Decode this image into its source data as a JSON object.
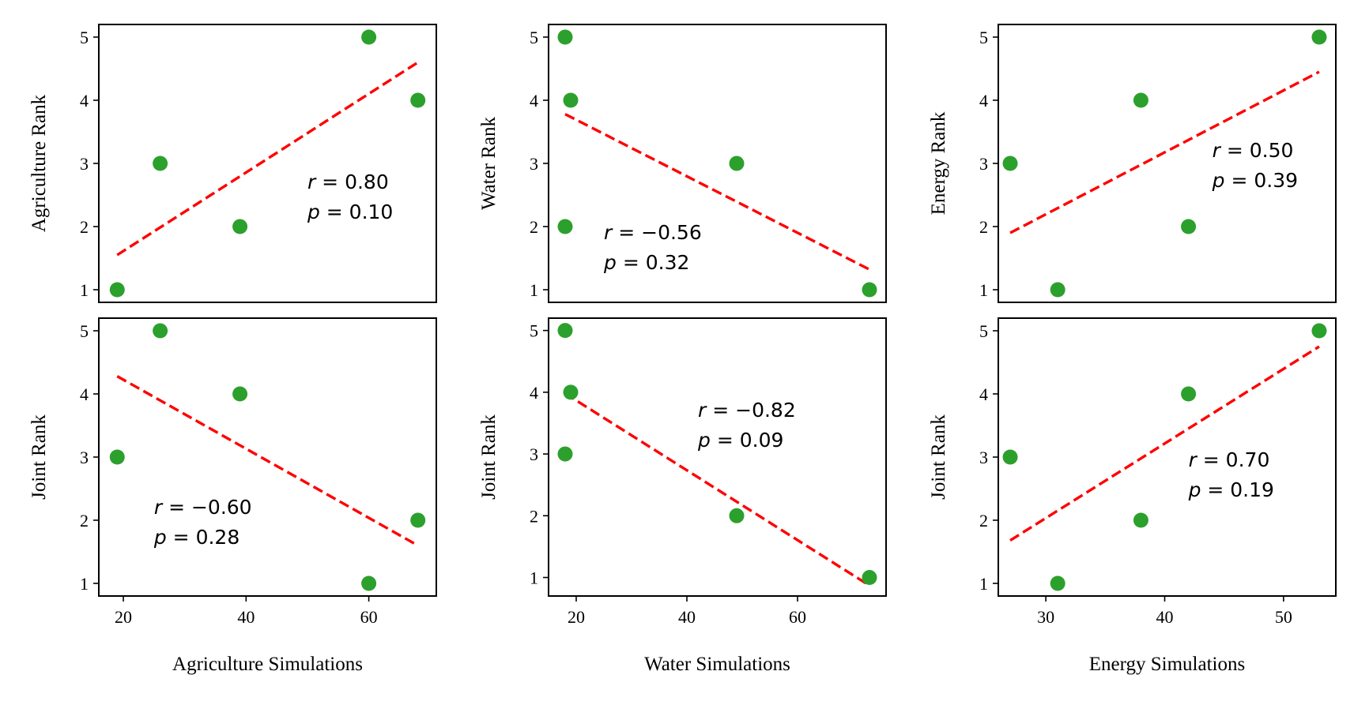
{
  "chart_data": [
    {
      "id": "agri-rank",
      "type": "scatter",
      "x": [
        19,
        26,
        39,
        60,
        68
      ],
      "y": [
        1,
        3,
        2,
        5,
        4
      ],
      "fit": {
        "x": [
          19,
          68
        ],
        "y": [
          1.55,
          4.6
        ]
      },
      "ylabel": "Agriculture Rank",
      "xlabel": "",
      "xlim": [
        16,
        71
      ],
      "ylim": [
        0.8,
        5.2
      ],
      "xticks": [],
      "xtick_labels": [],
      "yticks": [
        1,
        2,
        3,
        4,
        5
      ],
      "ytick_labels": [
        "1",
        "2",
        "3",
        "4",
        "5"
      ],
      "stats": {
        "r_label": "r",
        "r_text": "= 0.80",
        "p_label": "p",
        "p_text": "= 0.10",
        "anchor": [
          50,
          2.6
        ]
      },
      "colors": {
        "points": "#2ca02c",
        "fit": "#ff0000"
      }
    },
    {
      "id": "water-rank",
      "type": "scatter",
      "x": [
        18,
        19,
        49,
        18,
        73
      ],
      "y": [
        5,
        4,
        3,
        2,
        1
      ],
      "fit": {
        "x": [
          18,
          73
        ],
        "y": [
          3.78,
          1.32
        ]
      },
      "ylabel": "Water Rank",
      "xlabel": "",
      "xlim": [
        15,
        76
      ],
      "ylim": [
        0.8,
        5.2
      ],
      "xticks": [],
      "xtick_labels": [],
      "yticks": [
        1,
        2,
        3,
        4,
        5
      ],
      "ytick_labels": [
        "1",
        "2",
        "3",
        "4",
        "5"
      ],
      "stats": {
        "r_label": "r",
        "r_text": "= −0.56",
        "p_label": "p",
        "p_text": "= 0.32",
        "anchor": [
          25,
          1.8
        ]
      },
      "colors": {
        "points": "#2ca02c",
        "fit": "#ff0000"
      }
    },
    {
      "id": "energy-rank",
      "type": "scatter",
      "x": [
        27,
        31,
        38,
        42,
        53
      ],
      "y": [
        3,
        1,
        4,
        2,
        5
      ],
      "fit": {
        "x": [
          27,
          53
        ],
        "y": [
          1.9,
          4.45
        ]
      },
      "ylabel": "Energy Rank",
      "xlabel": "",
      "xlim": [
        26,
        54.4
      ],
      "ylim": [
        0.8,
        5.2
      ],
      "xticks": [],
      "xtick_labels": [],
      "yticks": [
        1,
        2,
        3,
        4,
        5
      ],
      "ytick_labels": [
        "1",
        "2",
        "3",
        "4",
        "5"
      ],
      "stats": {
        "r_label": "r",
        "r_text": "= 0.50",
        "p_label": "p",
        "p_text": "= 0.39",
        "anchor": [
          44,
          3.1
        ]
      },
      "colors": {
        "points": "#2ca02c",
        "fit": "#ff0000"
      }
    },
    {
      "id": "agri-joint",
      "type": "scatter",
      "x": [
        19,
        26,
        39,
        60,
        68
      ],
      "y": [
        3,
        5,
        4,
        1,
        2
      ],
      "fit": {
        "x": [
          19,
          68
        ],
        "y": [
          4.28,
          1.6
        ]
      },
      "ylabel": "Joint Rank",
      "xlabel": "Agriculture Simulations",
      "xlim": [
        16,
        71
      ],
      "ylim": [
        0.8,
        5.2
      ],
      "xticks": [
        20,
        40,
        60
      ],
      "xtick_labels": [
        "20",
        "40",
        "60"
      ],
      "yticks": [
        1,
        2,
        3,
        4,
        5
      ],
      "ytick_labels": [
        "1",
        "2",
        "3",
        "4",
        "5"
      ],
      "stats": {
        "r_label": "r",
        "r_text": "= −0.60",
        "p_label": "p",
        "p_text": "= 0.28",
        "anchor": [
          25,
          2.1
        ]
      },
      "colors": {
        "points": "#2ca02c",
        "fit": "#ff0000"
      }
    },
    {
      "id": "water-joint",
      "type": "scatter",
      "x": [
        18,
        19,
        18,
        49,
        73
      ],
      "y": [
        5,
        4,
        3,
        2,
        1
      ],
      "fit": {
        "x": [
          18,
          73
        ],
        "y": [
          3.98,
          0.87
        ]
      },
      "ylabel": "Joint Rank",
      "xlabel": "Water Simulations",
      "xlim": [
        15,
        76
      ],
      "ylim": [
        0.7,
        5.2
      ],
      "xticks": [
        20,
        40,
        60
      ],
      "xtick_labels": [
        "20",
        "40",
        "60"
      ],
      "yticks": [
        1,
        2,
        3,
        4,
        5
      ],
      "ytick_labels": [
        "1",
        "2",
        "3",
        "4",
        "5"
      ],
      "stats": {
        "r_label": "r",
        "r_text": "= −0.82",
        "p_label": "p",
        "p_text": "= 0.09",
        "anchor": [
          42,
          3.6
        ]
      },
      "colors": {
        "points": "#2ca02c",
        "fit": "#ff0000"
      }
    },
    {
      "id": "energy-joint",
      "type": "scatter",
      "x": [
        27,
        31,
        38,
        42,
        53
      ],
      "y": [
        3,
        1,
        2,
        4,
        5
      ],
      "fit": {
        "x": [
          27,
          53
        ],
        "y": [
          1.68,
          4.75
        ]
      },
      "ylabel": "Joint Rank",
      "xlabel": "Energy Simulations",
      "xlim": [
        26,
        54.4
      ],
      "ylim": [
        0.8,
        5.2
      ],
      "xticks": [
        30,
        40,
        50
      ],
      "xtick_labels": [
        "30",
        "40",
        "50"
      ],
      "yticks": [
        1,
        2,
        3,
        4,
        5
      ],
      "ytick_labels": [
        "1",
        "2",
        "3",
        "4",
        "5"
      ],
      "stats": {
        "r_label": "r",
        "r_text": "= 0.70",
        "p_label": "p",
        "p_text": "= 0.19",
        "anchor": [
          42,
          2.85
        ]
      },
      "colors": {
        "points": "#2ca02c",
        "fit": "#ff0000"
      }
    }
  ]
}
